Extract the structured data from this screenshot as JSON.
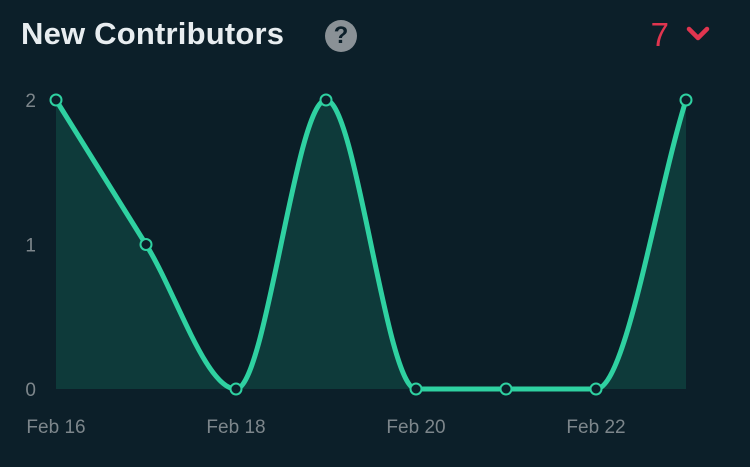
{
  "header": {
    "title": "New Contributors",
    "help_icon": "question-circle-icon",
    "count": "7",
    "count_color": "#e0354f",
    "dropdown_icon": "chevron-down-icon"
  },
  "chart_data": {
    "type": "area",
    "x": [
      "Feb 16",
      "Feb 17",
      "Feb 18",
      "Feb 19",
      "Feb 20",
      "Feb 21",
      "Feb 22",
      "Feb 23"
    ],
    "x_tick_labels": [
      "Feb 16",
      "Feb 18",
      "Feb 20",
      "Feb 22"
    ],
    "series": [
      {
        "values": [
          2,
          1,
          0,
          2,
          0,
          0,
          0,
          2
        ],
        "color": "#2fd1a1"
      }
    ],
    "y_ticks": [
      "0",
      "1",
      "2"
    ],
    "ylim": [
      0,
      2
    ],
    "title": "",
    "xlabel": "",
    "ylabel": "",
    "grid": false,
    "line_color": "#2fd1a1",
    "fill_color": "#0e3a3a"
  }
}
